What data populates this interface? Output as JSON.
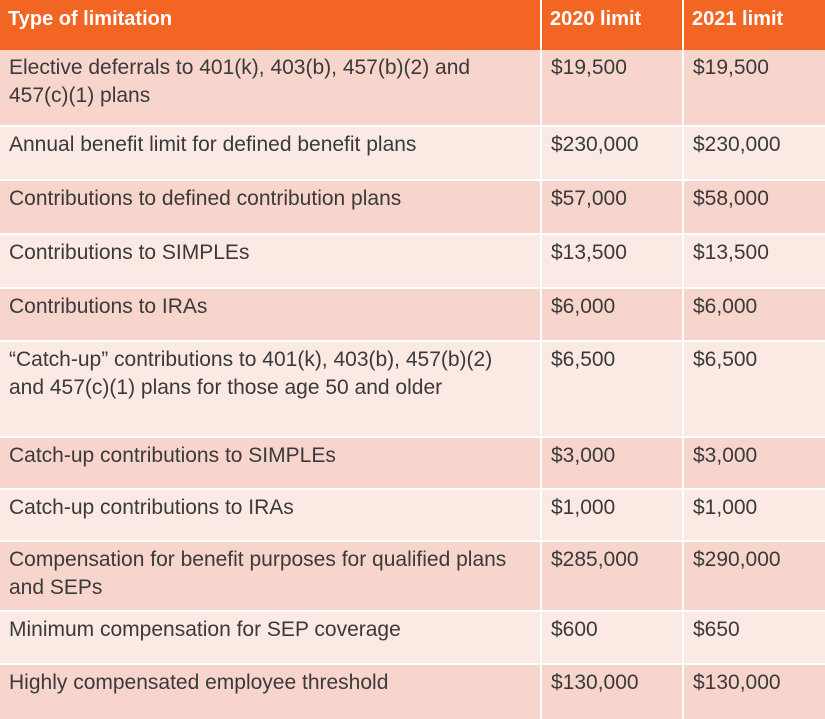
{
  "table": {
    "header": [
      "Type of limitation",
      "2020 limit",
      "2021 limit"
    ],
    "rows": [
      [
        "Elective deferrals to 401(k), 403(b), 457(b)(2) and 457(c)(1) plans",
        "$19,500",
        "$19,500"
      ],
      [
        "Annual benefit limit for defined benefit plans",
        "$230,000",
        "$230,000"
      ],
      [
        "Contributions to defined contribution plans",
        "$57,000",
        "$58,000"
      ],
      [
        "Contributions to SIMPLEs",
        "$13,500",
        "$13,500"
      ],
      [
        "Contributions to IRAs",
        "$6,000",
        "$6,000"
      ],
      [
        "“Catch-up” contributions to 401(k), 403(b), 457(b)(2) and 457(c)(1) plans for those age 50 and older",
        "$6,500",
        "$6,500"
      ],
      [
        "Catch-up contributions to SIMPLEs",
        "$3,000",
        "$3,000"
      ],
      [
        "Catch-up contributions to IRAs",
        "$1,000",
        "$1,000"
      ],
      [
        "Compensation for benefit purposes for qualified plans and SEPs",
        "$285,000",
        "$290,000"
      ],
      [
        "Minimum compensation for SEP coverage",
        "$600",
        "$650"
      ],
      [
        "Highly compensated employee threshold",
        "$130,000",
        "$130,000"
      ]
    ]
  }
}
